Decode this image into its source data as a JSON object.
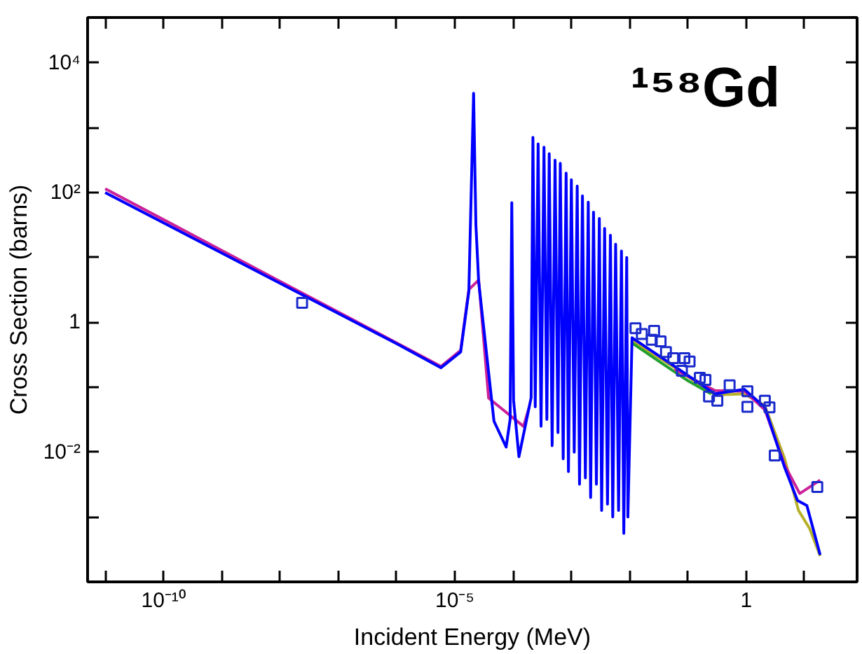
{
  "chart_data": {
    "type": "line",
    "xlabel": "Incident Energy (MeV)",
    "ylabel": "Cross Section (barns)",
    "annotations": [
      "¹⁵⁸Gd"
    ],
    "log": "xy",
    "grid": false,
    "line_style": "solid",
    "xlim": [
      5e-12,
      80
    ],
    "ylim": [
      0.0001,
      50000.0
    ],
    "xticks": [
      {
        "value": 1e-11,
        "label": null
      },
      {
        "value": 1e-10,
        "label": "10⁻¹⁰"
      },
      {
        "value": 1e-09,
        "label": null
      },
      {
        "value": 1e-08,
        "label": null
      },
      {
        "value": 1e-07,
        "label": null
      },
      {
        "value": 1e-06,
        "label": null
      },
      {
        "value": 1e-05,
        "label": "10⁻⁵"
      },
      {
        "value": 0.0001,
        "label": null
      },
      {
        "value": 0.001,
        "label": null
      },
      {
        "value": 0.01,
        "label": null
      },
      {
        "value": 0.1,
        "label": null
      },
      {
        "value": 1,
        "label": "1"
      },
      {
        "value": 10,
        "label": null
      }
    ],
    "yticks": [
      {
        "value": 0.001,
        "label": null
      },
      {
        "value": 0.01,
        "label": "10⁻²"
      },
      {
        "value": 0.1,
        "label": null
      },
      {
        "value": 1,
        "label": "1"
      },
      {
        "value": 10,
        "label": null
      },
      {
        "value": 100,
        "label": "10²"
      },
      {
        "value": 1000,
        "label": null
      },
      {
        "value": 10000,
        "label": "10⁴"
      }
    ],
    "series": [
      {
        "color": "#b5b02a",
        "x": [
          0.011,
          0.059,
          0.29,
          0.93,
          2.09,
          4.57,
          7.9,
          12.3,
          18.6
        ],
        "values": [
          0.52,
          0.2,
          0.076,
          0.079,
          0.052,
          0.0079,
          0.00126,
          0.00066,
          0.00025
        ]
      },
      {
        "color": "#22a030",
        "x": [
          0.011,
          0.032,
          0.1,
          0.25
        ],
        "values": [
          0.48,
          0.25,
          0.126,
          0.079
        ]
      },
      {
        "color": "#cc2299",
        "x": [
          1e-11,
          1e-08,
          5.8e-06,
          1.26e-05,
          1.74e-05,
          2.57e-05,
          3.8e-05,
          0.000151,
          0.00019,
          0.011,
          0.059,
          0.29,
          0.93,
          2.09,
          4.57,
          8.3,
          18.6
        ],
        "values": [
          115,
          4.3,
          0.21,
          0.37,
          3.2,
          4.5,
          0.068,
          0.025,
          0.05,
          null,
          0.19,
          0.089,
          0.087,
          0.045,
          0.0063,
          0.0023,
          0.0037
        ]
      },
      {
        "color": "#0000ff",
        "x": [
          1e-11,
          1e-08,
          1e-06,
          5.8e-06,
          1.26e-05,
          1.74e-05,
          2.1e-05,
          2.3e-05,
          2.57e-05,
          4.7e-05,
          7.6e-05,
          8.9e-05,
          9.5e-05,
          0.000102,
          0.000126,
          0.000204,
          0.000219,
          0.00024,
          0.000269,
          0.000302,
          0.000339,
          0.00038,
          0.000417,
          0.000468,
          0.000525,
          0.000589,
          0.000646,
          0.000724,
          0.000813,
          0.000891,
          0.001,
          0.00112,
          0.00126,
          0.00138,
          0.00155,
          0.00174,
          0.00195,
          0.00214,
          0.0024,
          0.00269,
          0.00302,
          0.00331,
          0.00372,
          0.00417,
          0.00468,
          0.00513,
          0.00575,
          0.00646,
          0.00724,
          0.00794,
          0.00891,
          0.00933,
          0.011,
          0.059,
          0.29,
          0.93,
          2.09,
          4.57,
          7.59,
          11,
          18.6
        ],
        "values": [
          100,
          4.0,
          0.47,
          0.2,
          0.35,
          3.0,
          3400,
          32,
          4.2,
          0.03,
          0.012,
          0.032,
          70,
          0.063,
          0.0085,
          0.069,
          708,
          0.05,
          562,
          0.025,
          501,
          0.032,
          398,
          0.0126,
          316,
          0.02,
          282,
          0.0079,
          200,
          0.005,
          158,
          0.01,
          126,
          0.0032,
          89,
          0.004,
          71,
          0.002,
          50,
          0.0032,
          40,
          0.00126,
          28,
          0.00158,
          22,
          0.001,
          16,
          0.00126,
          12.6,
          0.00056,
          10,
          0.001,
          0.58,
          0.21,
          0.079,
          0.093,
          0.049,
          0.0058,
          0.0018,
          0.0015,
          0.00026
        ]
      },
      {
        "type": "scatter",
        "marker": "square",
        "color": "#1a2acc",
        "x": [
          2.4e-08,
          0.0126,
          0.0162,
          0.0263,
          0.024,
          0.034,
          0.042,
          0.056,
          0.087,
          0.107,
          0.079,
          0.16,
          0.2,
          0.52,
          0.23,
          0.32,
          1.05,
          1.05,
          2.09,
          2.51,
          3.09,
          16.6
        ],
        "values": [
          2.0,
          0.81,
          0.66,
          0.74,
          0.54,
          0.51,
          0.35,
          0.28,
          0.28,
          0.25,
          0.18,
          0.14,
          0.13,
          0.107,
          0.072,
          0.062,
          0.087,
          0.05,
          0.062,
          0.049,
          0.0089,
          0.0029
        ]
      }
    ]
  }
}
